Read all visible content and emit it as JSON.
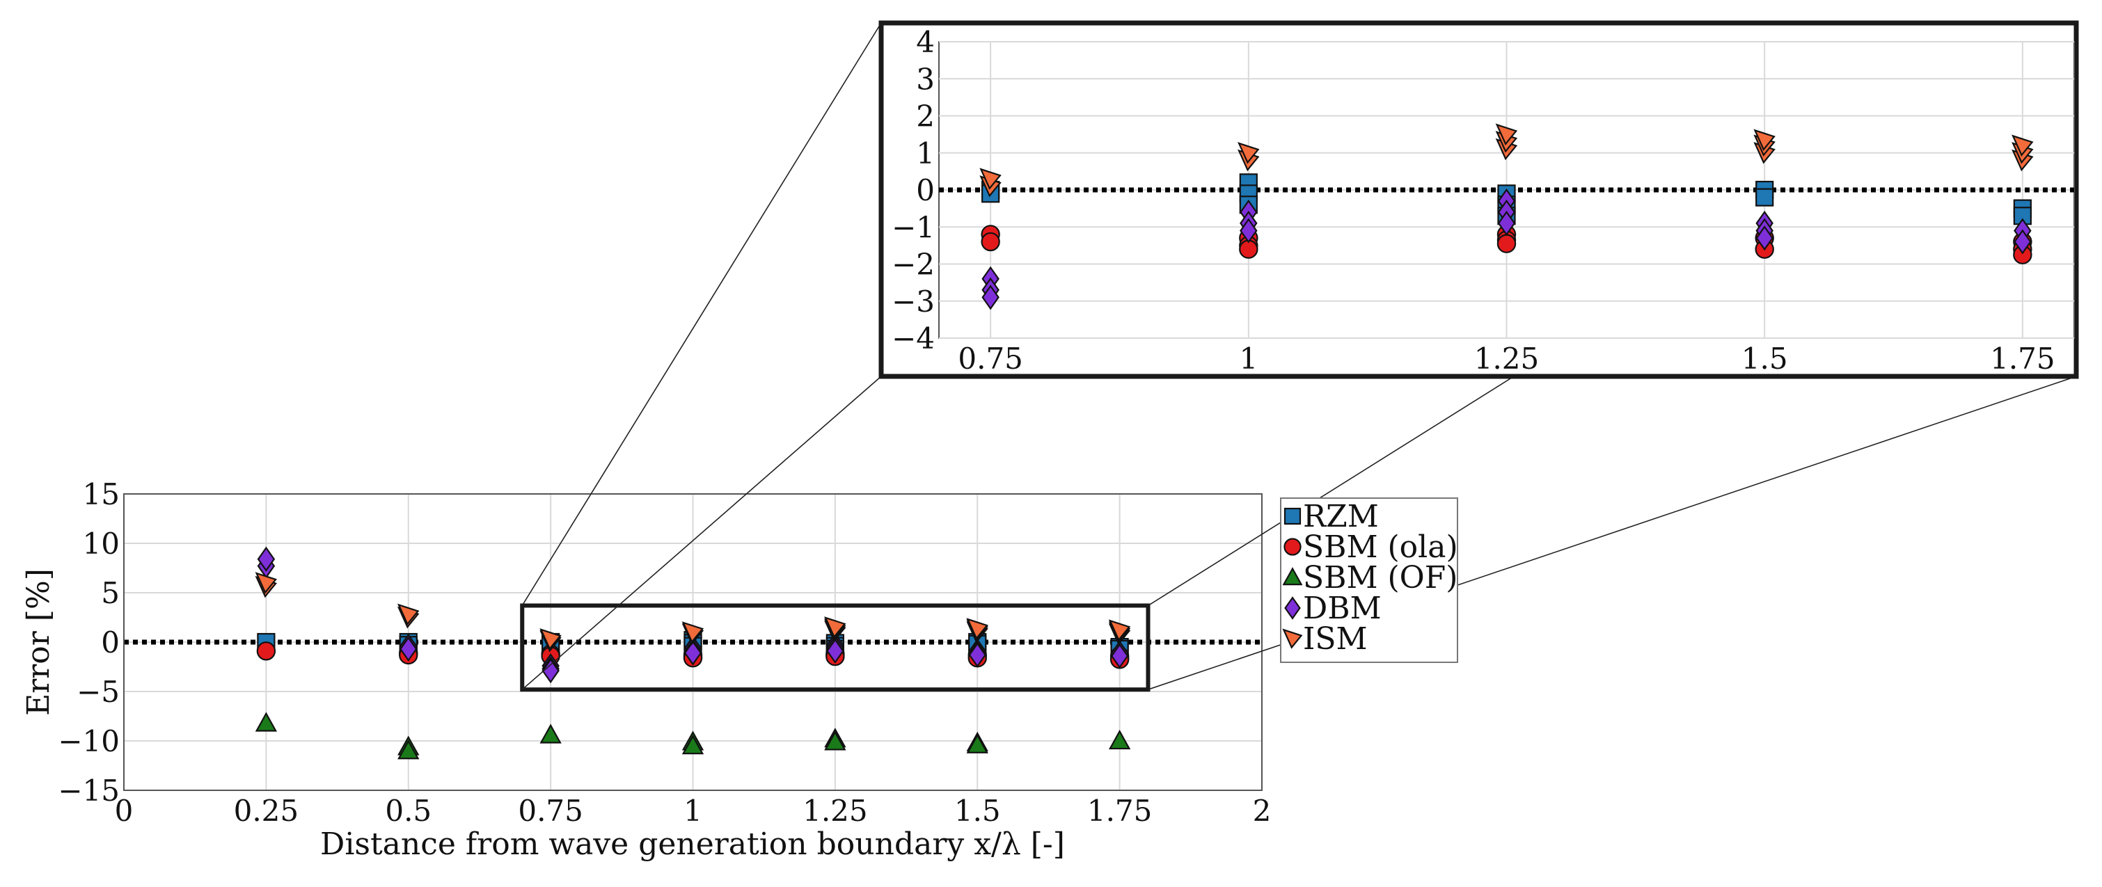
{
  "chart_data": [
    {
      "id": "main",
      "type": "scatter",
      "title": "",
      "xlabel": "Distance from wave generation boundary x/λ [-]",
      "ylabel": "Error [%]",
      "xlim": [
        0,
        2
      ],
      "ylim": [
        -15,
        15
      ],
      "xticks": [
        0,
        0.25,
        0.5,
        0.75,
        1,
        1.25,
        1.5,
        1.75,
        2
      ],
      "xtick_labels": [
        "0",
        "0.25",
        "0.5",
        "0.75",
        "1",
        "1.25",
        "1.5",
        "1.75",
        "2"
      ],
      "yticks": [
        -15,
        -10,
        -5,
        0,
        5,
        10,
        15
      ],
      "ytick_labels": [
        "−15",
        "−10",
        "−5",
        "0",
        "5",
        "10",
        "15"
      ],
      "grid": true,
      "reference_line": 0,
      "zoom_box": {
        "x": [
          0.7,
          1.8
        ],
        "y": [
          -4.8,
          3.7
        ]
      }
    },
    {
      "id": "inset",
      "type": "scatter",
      "title": "",
      "xlabel": "",
      "ylabel": "",
      "xlim": [
        0.7,
        1.8
      ],
      "ylim": [
        -4,
        4
      ],
      "xticks": [
        0.75,
        1,
        1.25,
        1.5,
        1.75
      ],
      "xtick_labels": [
        "0.75",
        "1",
        "1.25",
        "1.5",
        "1.75"
      ],
      "yticks": [
        -4,
        -3,
        -2,
        -1,
        0,
        1,
        2,
        3,
        4
      ],
      "ytick_labels": [
        "−4",
        "−3",
        "−2",
        "−1",
        "0",
        "1",
        "2",
        "3",
        "4"
      ],
      "grid": true,
      "reference_line": 0
    }
  ],
  "series": [
    {
      "name": "RZM",
      "marker": "square",
      "color": "#1f77b4",
      "points": [
        [
          0.25,
          0.0
        ],
        [
          0.5,
          0.0
        ],
        [
          0.5,
          -0.3
        ],
        [
          0.75,
          0.0
        ],
        [
          0.75,
          -0.1
        ],
        [
          1,
          0.2
        ],
        [
          1,
          -0.1
        ],
        [
          1,
          -0.4
        ],
        [
          1.25,
          -0.1
        ],
        [
          1.25,
          -0.4
        ],
        [
          1.25,
          -0.7
        ],
        [
          1.5,
          0.0
        ],
        [
          1.5,
          -0.2
        ],
        [
          1.75,
          -0.5
        ],
        [
          1.75,
          -0.7
        ]
      ]
    },
    {
      "name": "SBM (ola)",
      "marker": "circle",
      "color": "#e31a1c",
      "points": [
        [
          0.25,
          -0.9
        ],
        [
          0.5,
          -1.1
        ],
        [
          0.5,
          -1.3
        ],
        [
          0.75,
          -1.2
        ],
        [
          0.75,
          -1.4
        ],
        [
          1,
          -1.3
        ],
        [
          1,
          -1.5
        ],
        [
          1,
          -1.6
        ],
        [
          1.25,
          -1.2
        ],
        [
          1.25,
          -1.35
        ],
        [
          1.25,
          -1.45
        ],
        [
          1.5,
          -1.3
        ],
        [
          1.5,
          -1.6
        ],
        [
          1.75,
          -1.4
        ],
        [
          1.75,
          -1.6
        ],
        [
          1.75,
          -1.75
        ]
      ]
    },
    {
      "name": "SBM (OF)",
      "marker": "triangle-up",
      "color": "#1a7a1a",
      "points": [
        [
          0.25,
          -8.2
        ],
        [
          0.5,
          -10.6
        ],
        [
          0.5,
          -11.0
        ],
        [
          0.75,
          -9.4
        ],
        [
          1,
          -10.1
        ],
        [
          1,
          -10.5
        ],
        [
          1.25,
          -9.8
        ],
        [
          1.25,
          -10.1
        ],
        [
          1.5,
          -10.2
        ],
        [
          1.5,
          -10.4
        ],
        [
          1.75,
          -10.0
        ]
      ]
    },
    {
      "name": "DBM",
      "marker": "diamond",
      "color": "#7e2fd8",
      "points": [
        [
          0.25,
          7.7
        ],
        [
          0.25,
          8.4
        ],
        [
          0.5,
          -0.4
        ],
        [
          0.5,
          -0.7
        ],
        [
          0.75,
          -2.4
        ],
        [
          0.75,
          -2.7
        ],
        [
          0.75,
          -2.9
        ],
        [
          1,
          -0.6
        ],
        [
          1,
          -0.9
        ],
        [
          1,
          -1.1
        ],
        [
          1.25,
          -0.3
        ],
        [
          1.25,
          -0.6
        ],
        [
          1.25,
          -0.9
        ],
        [
          1.5,
          -0.9
        ],
        [
          1.5,
          -1.1
        ],
        [
          1.5,
          -1.3
        ],
        [
          1.75,
          -1.1
        ],
        [
          1.75,
          -1.4
        ]
      ]
    },
    {
      "name": "ISM",
      "marker": "triangle-right",
      "color": "#f26b3a",
      "points": [
        [
          0.25,
          5.6
        ],
        [
          0.25,
          6.0
        ],
        [
          0.5,
          2.5
        ],
        [
          0.5,
          2.8
        ],
        [
          0.75,
          0.1
        ],
        [
          0.75,
          0.3
        ],
        [
          1,
          0.8
        ],
        [
          1,
          1.0
        ],
        [
          1.25,
          1.1
        ],
        [
          1.25,
          1.3
        ],
        [
          1.25,
          1.5
        ],
        [
          1.5,
          1.0
        ],
        [
          1.5,
          1.2
        ],
        [
          1.5,
          1.35
        ],
        [
          1.75,
          0.8
        ],
        [
          1.75,
          1.0
        ],
        [
          1.75,
          1.2
        ]
      ]
    }
  ],
  "legend": {
    "position": "right of main plot",
    "entries": [
      "RZM",
      "SBM (ola)",
      "SBM (OF)",
      "DBM",
      "ISM"
    ]
  }
}
